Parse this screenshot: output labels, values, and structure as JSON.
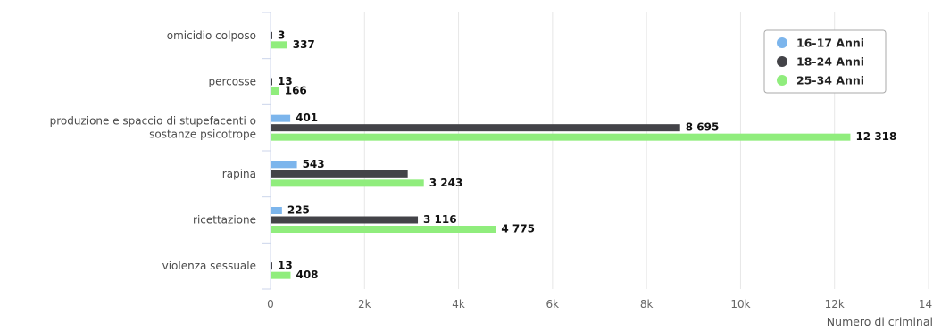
{
  "chart_data": {
    "type": "bar",
    "orientation": "horizontal",
    "categories": [
      [
        "omicidio colposo"
      ],
      [
        "percosse"
      ],
      [
        "produzione e spaccio di stupefacenti o",
        "sostanze psicotrope"
      ],
      [
        "rapina"
      ],
      [
        "ricettazione"
      ],
      [
        "violenza sessuale"
      ]
    ],
    "series": [
      {
        "name": "16-17 Anni",
        "color": "#7cb5ec",
        "values": [
          null,
          null,
          401,
          543,
          225,
          null
        ],
        "labels": [
          "",
          "",
          "401",
          "543",
          "225",
          ""
        ]
      },
      {
        "name": "18-24 Anni",
        "color": "#434348",
        "values": [
          3,
          13,
          8695,
          2900,
          3116,
          13
        ],
        "labels": [
          "3",
          "13",
          "8 695",
          "",
          "3 116",
          "13"
        ]
      },
      {
        "name": "25-34 Anni",
        "color": "#90ed7d",
        "values": [
          337,
          166,
          12318,
          3243,
          4775,
          408
        ],
        "labels": [
          "337",
          "166",
          "12 318",
          "3 243",
          "4 775",
          "408"
        ]
      }
    ],
    "xaxis": {
      "title": "Numero di criminal",
      "ticks": [
        "0",
        "2k",
        "4k",
        "6k",
        "8k",
        "10k",
        "12k",
        "14k"
      ],
      "tick_values": [
        0,
        2000,
        4000,
        6000,
        8000,
        10000,
        12000,
        14000
      ],
      "xlim": [
        0,
        14000
      ]
    },
    "grid": true,
    "legend_position": "top-right"
  }
}
